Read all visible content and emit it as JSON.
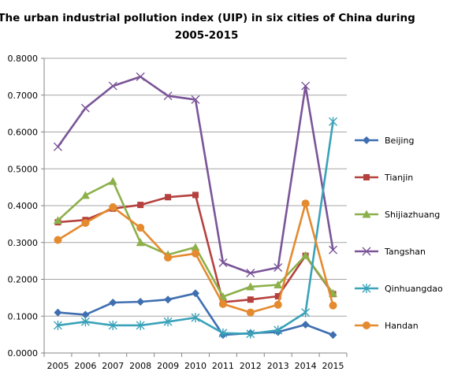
{
  "chart_data": {
    "type": "line",
    "title_line1": "The urban industrial pollution index (UIP)  in six cities of China during",
    "title_line2": "2005-2015",
    "x": [
      "2005",
      "2006",
      "2007",
      "2008",
      "2009",
      "2010",
      "2011",
      "2012",
      "2013",
      "2014",
      "2015"
    ],
    "ylim": [
      0,
      0.8
    ],
    "yticks": [
      "0.0000",
      "0.1000",
      "0.2000",
      "0.3000",
      "0.4000",
      "0.5000",
      "0.6000",
      "0.7000",
      "0.8000"
    ],
    "grid": "horizontal",
    "legend_position": "right",
    "series": [
      {
        "name": "Beijing",
        "color": "#3f6fb0",
        "marker": "diamond",
        "values": [
          0.11,
          0.104,
          0.137,
          0.139,
          0.145,
          0.162,
          0.049,
          0.054,
          0.057,
          0.077,
          0.049
        ]
      },
      {
        "name": "Tianjin",
        "color": "#b5413e",
        "marker": "square",
        "values": [
          0.355,
          0.361,
          0.392,
          0.402,
          0.423,
          0.429,
          0.138,
          0.145,
          0.154,
          0.264,
          0.16
        ]
      },
      {
        "name": "Shijiazhuang",
        "color": "#8cb04a",
        "marker": "triangle",
        "values": [
          0.36,
          0.428,
          0.466,
          0.3,
          0.267,
          0.287,
          0.153,
          0.18,
          0.185,
          0.265,
          0.162
        ]
      },
      {
        "name": "Tangshan",
        "color": "#7a5598",
        "marker": "x",
        "values": [
          0.56,
          0.665,
          0.725,
          0.75,
          0.698,
          0.688,
          0.245,
          0.217,
          0.232,
          0.725,
          0.28
        ]
      },
      {
        "name": "Qinhuangdao",
        "color": "#3aa2b9",
        "marker": "star",
        "values": [
          0.075,
          0.085,
          0.075,
          0.075,
          0.085,
          0.096,
          0.054,
          0.052,
          0.062,
          0.11,
          0.628
        ]
      },
      {
        "name": "Handan",
        "color": "#e48a2f",
        "marker": "circle",
        "values": [
          0.307,
          0.353,
          0.396,
          0.34,
          0.259,
          0.27,
          0.133,
          0.11,
          0.131,
          0.406,
          0.129
        ]
      }
    ]
  }
}
